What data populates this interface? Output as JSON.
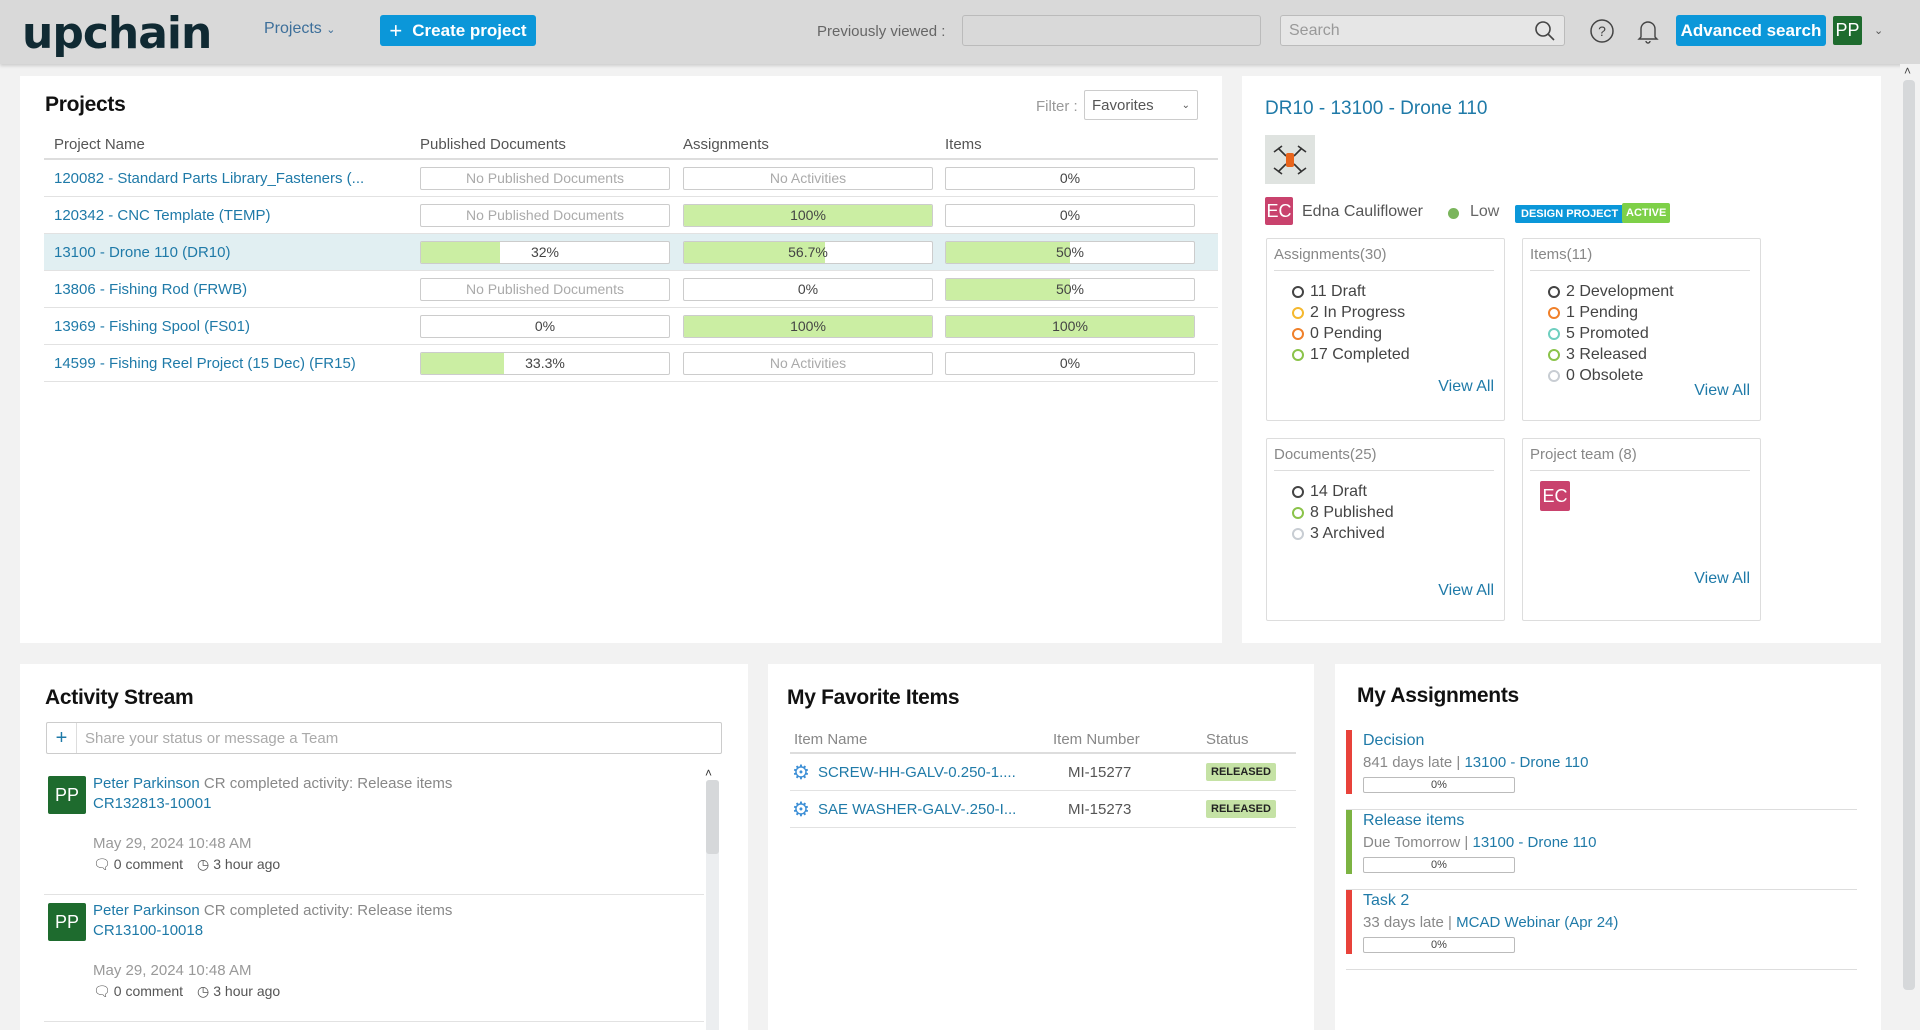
{
  "header": {
    "logo": "upchain",
    "nav_projects": "Projects",
    "create_project": "Create project",
    "previously_viewed_label": "Previously viewed :",
    "previously_viewed_value": "",
    "search_placeholder": "Search",
    "advanced_search": "Advanced search",
    "user_initials": "PP"
  },
  "projects": {
    "title": "Projects",
    "filter_label": "Filter :",
    "filter_value": "Favorites",
    "columns": [
      "Project Name",
      "Published Documents",
      "Assignments",
      "Items"
    ],
    "rows": [
      {
        "name": "120082 - Standard Parts Library_Fasteners (...",
        "docs": "No Published Documents",
        "docs_pct": null,
        "assign": "No Activities",
        "assign_pct": null,
        "items": "0%",
        "items_pct": 0
      },
      {
        "name": "120342 - CNC Template (TEMP)",
        "docs": "No Published Documents",
        "docs_pct": null,
        "assign": "100%",
        "assign_pct": 100,
        "items": "0%",
        "items_pct": 0
      },
      {
        "name": "13100 - Drone 110 (DR10)",
        "docs": "32%",
        "docs_pct": 32,
        "assign": "56.7%",
        "assign_pct": 56.7,
        "items": "50%",
        "items_pct": 50,
        "selected": true
      },
      {
        "name": "13806 - Fishing Rod (FRWB)",
        "docs": "No Published Documents",
        "docs_pct": null,
        "assign": "0%",
        "assign_pct": 0,
        "items": "50%",
        "items_pct": 50
      },
      {
        "name": "13969 - Fishing Spool (FS01)",
        "docs": "0%",
        "docs_pct": 0,
        "assign": "100%",
        "assign_pct": 100,
        "items": "100%",
        "items_pct": 100
      },
      {
        "name": "14599 - Fishing Reel Project (15 Dec) (FR15)",
        "docs": "33.3%",
        "docs_pct": 33.3,
        "assign": "No Activities",
        "assign_pct": null,
        "items": "0%",
        "items_pct": 0
      }
    ]
  },
  "detail": {
    "title": "DR10 - 13100 - Drone 110",
    "owner_initials": "EC",
    "owner": "Edna Cauliflower",
    "priority": "Low",
    "type_badge": "DESIGN PROJECT",
    "status_badge": "ACTIVE",
    "assignments": {
      "title": "Assignments(30)",
      "items": [
        "11 Draft",
        "2 In Progress",
        "0 Pending",
        "17 Completed"
      ],
      "view_all": "View All"
    },
    "items": {
      "title": "Items(11)",
      "items": [
        "2 Development",
        "1 Pending",
        "5 Promoted",
        "3 Released",
        "0 Obsolete"
      ],
      "view_all": "View All"
    },
    "documents": {
      "title": "Documents(25)",
      "items": [
        "14 Draft",
        "8 Published",
        "3 Archived"
      ],
      "view_all": "View All"
    },
    "team": {
      "title": "Project team (8)",
      "member_initials": "EC",
      "view_all": "View All"
    }
  },
  "activity": {
    "title": "Activity Stream",
    "placeholder": "Share your status or message a Team",
    "entries": [
      {
        "initials": "PP",
        "user": "Peter Parkinson",
        "action": " CR completed activity: Release items",
        "ref": "CR132813-10001",
        "date": "May 29, 2024 10:48 AM",
        "comments": "0 comment",
        "ago": "3 hour ago"
      },
      {
        "initials": "PP",
        "user": "Peter Parkinson",
        "action": " CR completed activity: Release items",
        "ref": "CR13100-10018",
        "date": "May 29, 2024 10:48 AM",
        "comments": "0 comment",
        "ago": "3 hour ago"
      }
    ]
  },
  "favorites": {
    "title": "My Favorite Items",
    "columns": [
      "Item Name",
      "Item Number",
      "Status"
    ],
    "rows": [
      {
        "name": "SCREW-HH-GALV-0.250-1....",
        "number": "MI-15277",
        "status": "RELEASED"
      },
      {
        "name": "SAE WASHER-GALV-.250-I...",
        "number": "MI-15273",
        "status": "RELEASED"
      }
    ]
  },
  "my_assignments": {
    "title": "My Assignments",
    "items": [
      {
        "name": "Decision",
        "due": "841 days late | ",
        "project": "13100 - Drone 110",
        "progress": "0%",
        "color": "#e8423a"
      },
      {
        "name": "Release items",
        "due": "Due Tomorrow | ",
        "project": "13100 - Drone 110",
        "progress": "0%",
        "color": "#7cb342"
      },
      {
        "name": "Task 2",
        "due": "33 days late | ",
        "project": "MCAD Webinar (Apr 24)",
        "progress": "0%",
        "color": "#e8423a"
      }
    ]
  }
}
